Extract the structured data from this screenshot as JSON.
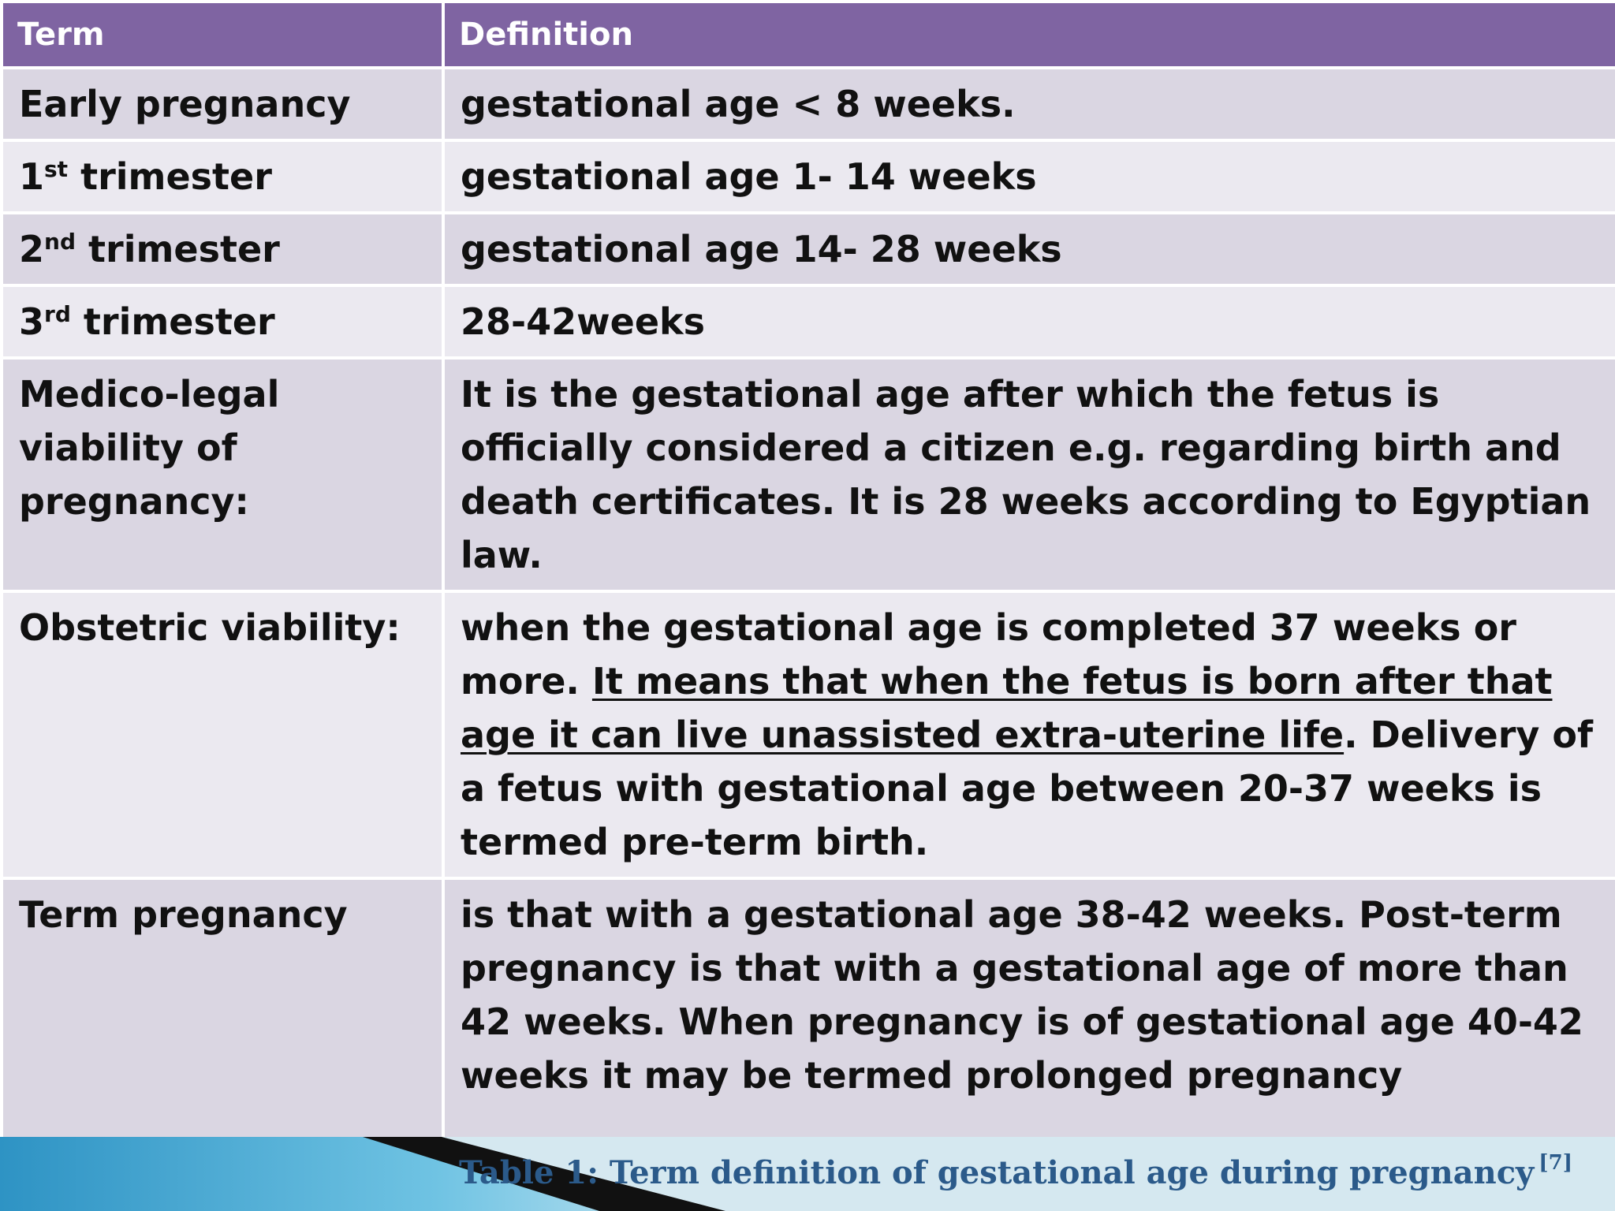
{
  "table": {
    "headers": {
      "term": "Term",
      "definition": "Definition"
    },
    "rows": [
      {
        "term": "Early pregnancy",
        "definition": "gestational age < 8 weeks."
      },
      {
        "term_num": "1",
        "term_sup": "st",
        "term_rest": " trimester",
        "definition": "gestational age 1- 14 weeks"
      },
      {
        "term_num": "2",
        "term_sup": "nd",
        "term_rest": " trimester",
        "definition": "gestational age 14- 28 weeks"
      },
      {
        "term_num": "3",
        "term_sup": "rd",
        "term_rest": " trimester",
        "definition": "28-42weeks"
      },
      {
        "term": "Medico-legal viability of pregnancy:",
        "definition": "It is the gestational age after which the fetus is officially considered a citizen e.g. regarding birth and death certificates. It is 28 weeks according to Egyptian law."
      },
      {
        "term": "Obstetric viability:",
        "def_part1": "when the gestational age is completed 37 weeks or more. ",
        "def_underlined": "It means that when the fetus is born after that age it can live unassisted extra-uterine life",
        "def_part2": ". Delivery of a fetus with gestational age between 20-37 weeks is termed pre-term birth."
      },
      {
        "term": "Term pregnancy",
        "definition": "is that with a gestational age 38-42 weeks. Post-term pregnancy is that with a gestational age of more than 42 weeks. When pregnancy is of gestational age 40-42 weeks it may be termed prolonged pregnancy"
      }
    ]
  },
  "caption": {
    "text": "Table 1: Term definition of gestational age during pregnancy",
    "ref": "[7]"
  },
  "colors": {
    "header": "#7f64a2",
    "row_odd": "#dad6e2",
    "row_even": "#ebe9f0",
    "caption": "#2b5a8a"
  }
}
